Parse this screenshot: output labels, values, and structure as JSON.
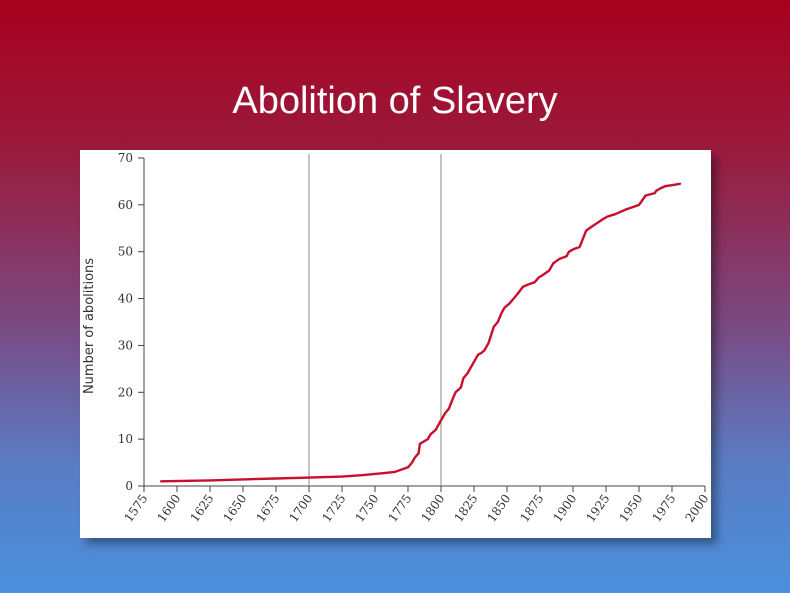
{
  "slide": {
    "title": "Abolition of Slavery"
  },
  "colors": {
    "line": "#c8102e",
    "axis": "#444444",
    "reference_line": "#888888"
  },
  "chart_data": {
    "type": "line",
    "title": "",
    "xlabel": "",
    "ylabel": "Number of abolitions",
    "xlim": [
      1575,
      2000
    ],
    "ylim": [
      0,
      70
    ],
    "x_ticks": [
      1575,
      1600,
      1625,
      1650,
      1675,
      1700,
      1725,
      1750,
      1775,
      1800,
      1825,
      1850,
      1875,
      1900,
      1925,
      1950,
      1975,
      2000
    ],
    "y_ticks": [
      0,
      10,
      20,
      30,
      40,
      50,
      60,
      70
    ],
    "reference_lines_x": [
      1700,
      1800
    ],
    "grid": false,
    "legend": "none",
    "series": [
      {
        "x": [
          1588,
          1625,
          1650,
          1675,
          1700,
          1725,
          1740,
          1755,
          1765,
          1770,
          1775,
          1778,
          1780,
          1783,
          1784,
          1790,
          1792,
          1796,
          1800,
          1803,
          1806,
          1808,
          1811,
          1815,
          1817,
          1820,
          1822,
          1825,
          1828,
          1831,
          1833,
          1836,
          1840,
          1843,
          1846,
          1848,
          1852,
          1855,
          1858,
          1862,
          1866,
          1871,
          1874,
          1877,
          1882,
          1885,
          1890,
          1895,
          1897,
          1900,
          1905,
          1910,
          1915,
          1923,
          1926,
          1932,
          1936,
          1940,
          1945,
          1950,
          1955,
          1962,
          1963,
          1966,
          1970,
          1975,
          1981
        ],
        "y": [
          1,
          1.2,
          1.4,
          1.6,
          1.8,
          2,
          2.3,
          2.7,
          3,
          3.5,
          4,
          5,
          6,
          7,
          9,
          10,
          11,
          12,
          14,
          15.5,
          16.5,
          18,
          20,
          21,
          23,
          24,
          25,
          26.5,
          28,
          28.5,
          29,
          30.5,
          34,
          35,
          37,
          38,
          39,
          40,
          41,
          42.5,
          43,
          43.5,
          44.5,
          45,
          46,
          47.5,
          48.5,
          49,
          50,
          50.5,
          51,
          54.5,
          55.5,
          57,
          57.5,
          58,
          58.5,
          59,
          59.5,
          60,
          62,
          62.5,
          63,
          63.5,
          64,
          64.2,
          64.5
        ]
      }
    ]
  }
}
